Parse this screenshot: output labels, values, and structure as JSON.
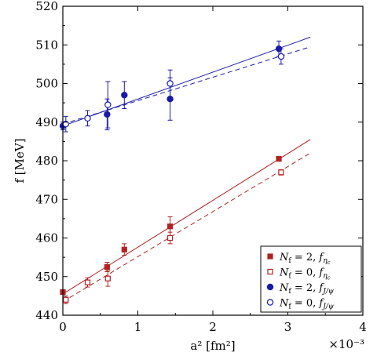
{
  "chart_data": {
    "type": "scatter",
    "title": "",
    "xlabel": "a² [fm²]",
    "ylabel": "f [MeV]",
    "x_multiplier": "×10⁻³",
    "xlim": [
      0,
      4
    ],
    "ylim": [
      440,
      520
    ],
    "xticks": [
      0,
      1,
      2,
      3,
      4
    ],
    "yticks": [
      440,
      450,
      460,
      470,
      480,
      490,
      500,
      510,
      520
    ],
    "grid": false,
    "legend_position": "bottom-right",
    "series": [
      {
        "name": "Nf = 2, fηc",
        "color": "#b22222",
        "marker": "square-filled",
        "points": [
          {
            "x": 0.0,
            "y": 446.0,
            "err": 0.6
          },
          {
            "x": 0.59,
            "y": 452.5,
            "err": 1.2
          },
          {
            "x": 0.82,
            "y": 457.0,
            "err": 1.5
          },
          {
            "x": 1.43,
            "y": 463.0,
            "err": 2.5
          },
          {
            "x": 2.88,
            "y": 480.5,
            "err": 0.6
          }
        ],
        "fit": {
          "style": "solid",
          "x": [
            0,
            3.3
          ],
          "y": [
            445.5,
            485.5
          ]
        }
      },
      {
        "name": "Nf = 0, fηc",
        "color": "#b22222",
        "marker": "square-open",
        "points": [
          {
            "x": 0.04,
            "y": 444.0,
            "err": 1.0
          },
          {
            "x": 0.33,
            "y": 448.5,
            "err": 1.2
          },
          {
            "x": 0.6,
            "y": 449.5,
            "err": 2.0
          },
          {
            "x": 1.43,
            "y": 460.0,
            "err": 1.5
          },
          {
            "x": 2.91,
            "y": 477.0,
            "err": 0.7
          }
        ],
        "fit": {
          "style": "dashed",
          "x": [
            0,
            3.3
          ],
          "y": [
            443.5,
            482.0
          ]
        }
      },
      {
        "name": "Nf = 2, fJ/ψ",
        "color": "#1a1aaa",
        "marker": "circle-filled",
        "points": [
          {
            "x": 0.0,
            "y": 489.0,
            "err": 1.0
          },
          {
            "x": 0.59,
            "y": 492.0,
            "err": 4.0
          },
          {
            "x": 0.82,
            "y": 497.0,
            "err": 3.5
          },
          {
            "x": 1.43,
            "y": 496.0,
            "err": 5.5
          },
          {
            "x": 2.88,
            "y": 509.0,
            "err": 2.0
          }
        ],
        "fit": {
          "style": "solid",
          "x": [
            0,
            3.3
          ],
          "y": [
            489.0,
            512.0
          ]
        }
      },
      {
        "name": "Nf = 0, fJ/ψ",
        "color": "#1a1aaa",
        "marker": "circle-open",
        "points": [
          {
            "x": 0.04,
            "y": 489.5,
            "err": 2.0
          },
          {
            "x": 0.33,
            "y": 491.0,
            "err": 2.0
          },
          {
            "x": 0.6,
            "y": 494.5,
            "err": 6.0
          },
          {
            "x": 1.43,
            "y": 500.0,
            "err": 3.5
          },
          {
            "x": 2.91,
            "y": 507.0,
            "err": 2.0
          }
        ],
        "fit": {
          "style": "dashed",
          "x": [
            0,
            3.3
          ],
          "y": [
            489.5,
            509.5
          ]
        }
      }
    ],
    "legend": [
      {
        "prefix": "N",
        "sub": "f",
        "mid": " = 2, ",
        "fn": "f",
        "fnsub": "η",
        "fnsubsub": "c",
        "series": 0
      },
      {
        "prefix": "N",
        "sub": "f",
        "mid": " = 0, ",
        "fn": "f",
        "fnsub": "η",
        "fnsubsub": "c",
        "series": 1
      },
      {
        "prefix": "N",
        "sub": "f",
        "mid": " = 2, ",
        "fn": "f",
        "fnsub": "J/ψ",
        "fnsubsub": "",
        "series": 2
      },
      {
        "prefix": "N",
        "sub": "f",
        "mid": " = 0, ",
        "fn": "f",
        "fnsub": "J/ψ",
        "fnsubsub": "",
        "series": 3
      }
    ]
  }
}
